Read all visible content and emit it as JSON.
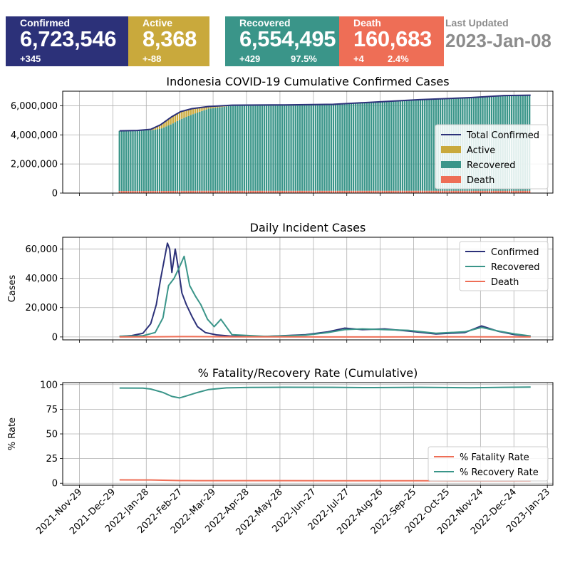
{
  "summary": {
    "confirmed": {
      "label": "Confirmed",
      "value": "6,723,546",
      "delta": "+345",
      "color": "#2c3179"
    },
    "active": {
      "label": "Active",
      "value": "8,368",
      "delta": "+-88",
      "color": "#c9a93c"
    },
    "recovered": {
      "label": "Recovered",
      "value": "6,554,495",
      "delta": "+429",
      "pct": "97.5%",
      "color": "#3a9589"
    },
    "death": {
      "label": "Death",
      "value": "160,683",
      "delta": "+4",
      "pct": "2.4%",
      "color": "#ee6e56"
    },
    "last_updated": {
      "label": "Last Updated",
      "value": "2023-Jan-08"
    }
  },
  "chart_data": [
    {
      "type": "area",
      "title": "Indonesia COVID-19 Cumulative Confirmed Cases",
      "ylabel": "",
      "ylim": [
        0,
        7000000
      ],
      "yticks": [
        0,
        2000000,
        4000000,
        6000000
      ],
      "ytick_labels": [
        "0",
        "2,000,000",
        "4,000,000",
        "6,000,000"
      ],
      "x": [
        "2022-01-04",
        "2022-01-20",
        "2022-02-01",
        "2022-02-10",
        "2022-02-20",
        "2022-02-28",
        "2022-03-10",
        "2022-03-25",
        "2022-04-15",
        "2022-06-01",
        "2022-07-15",
        "2022-08-20",
        "2022-09-30",
        "2022-11-15",
        "2022-12-15",
        "2023-01-08"
      ],
      "series": [
        {
          "name": "Total Confirmed",
          "color": "#2c3179",
          "values": [
            4280000,
            4300000,
            4380000,
            4700000,
            5250000,
            5600000,
            5800000,
            5950000,
            6040000,
            6060000,
            6100000,
            6250000,
            6420000,
            6560000,
            6700000,
            6723546
          ]
        },
        {
          "name": "Active",
          "color": "#c9a93c",
          "values": [
            6000,
            8000,
            60000,
            280000,
            500000,
            520000,
            400000,
            150000,
            40000,
            5000,
            14000,
            30000,
            20000,
            10000,
            12000,
            8368
          ]
        },
        {
          "name": "Recovered",
          "color": "#3a9589",
          "values": [
            4130000,
            4150000,
            4175000,
            4270000,
            4600000,
            4920000,
            5240000,
            5640000,
            5844000,
            5899000,
            5930000,
            6062000,
            6240000,
            6390000,
            6527000,
            6554495
          ]
        },
        {
          "name": "Death",
          "color": "#ee6e56",
          "values": [
            144000,
            144100,
            144600,
            145600,
            148700,
            152600,
            156200,
            159200,
            156000,
            156000,
            156000,
            158000,
            160000,
            160000,
            160700,
            160683
          ]
        }
      ],
      "legend": "right",
      "grid": true
    },
    {
      "type": "line",
      "title": "Daily Incident Cases",
      "ylabel": "Cases",
      "ylim": [
        -2000,
        68000
      ],
      "yticks": [
        0,
        20000,
        40000,
        60000
      ],
      "ytick_labels": [
        "0",
        "20,000",
        "40,000",
        "60,000"
      ],
      "legend": "top-right",
      "grid": true,
      "series": [
        {
          "name": "Confirmed",
          "color": "#2c3179",
          "x": [
            "2022-01-04",
            "2022-01-15",
            "2022-01-25",
            "2022-02-01",
            "2022-02-06",
            "2022-02-10",
            "2022-02-13",
            "2022-02-16",
            "2022-02-18",
            "2022-02-20",
            "2022-02-23",
            "2022-02-26",
            "2022-03-01",
            "2022-03-05",
            "2022-03-10",
            "2022-03-15",
            "2022-03-22",
            "2022-04-01",
            "2022-04-15",
            "2022-05-15",
            "2022-06-20",
            "2022-07-10",
            "2022-07-25",
            "2022-08-10",
            "2022-08-30",
            "2022-09-20",
            "2022-10-15",
            "2022-11-10",
            "2022-11-25",
            "2022-12-10",
            "2022-12-25",
            "2023-01-08"
          ],
          "values": [
            300,
            900,
            2500,
            9000,
            22000,
            40000,
            52000,
            64000,
            60000,
            44000,
            60000,
            46000,
            30000,
            22000,
            14000,
            7000,
            3000,
            1400,
            500,
            300,
            1500,
            3500,
            6000,
            5000,
            5500,
            4000,
            2000,
            3000,
            7500,
            3800,
            1500,
            500
          ]
        },
        {
          "name": "Recovered",
          "color": "#3a9589",
          "x": [
            "2022-01-04",
            "2022-01-15",
            "2022-01-25",
            "2022-02-05",
            "2022-02-12",
            "2022-02-17",
            "2022-02-22",
            "2022-02-27",
            "2022-03-03",
            "2022-03-08",
            "2022-03-13",
            "2022-03-18",
            "2022-03-24",
            "2022-03-30",
            "2022-04-05",
            "2022-04-15",
            "2022-05-15",
            "2022-06-20",
            "2022-07-10",
            "2022-07-25",
            "2022-08-10",
            "2022-08-30",
            "2022-09-20",
            "2022-10-15",
            "2022-11-10",
            "2022-11-25",
            "2022-12-10",
            "2022-12-25",
            "2023-01-08"
          ],
          "values": [
            500,
            600,
            800,
            3000,
            13000,
            35000,
            40000,
            48000,
            55000,
            35000,
            28000,
            22000,
            12000,
            7000,
            12000,
            1500,
            400,
            1200,
            3000,
            5000,
            5500,
            5000,
            4500,
            2500,
            3500,
            6500,
            4000,
            2000,
            600
          ]
        },
        {
          "name": "Death",
          "color": "#ee6e56",
          "x": [
            "2022-01-04",
            "2022-02-01",
            "2022-02-20",
            "2022-03-10",
            "2022-04-15",
            "2022-07-01",
            "2022-09-01",
            "2022-11-15",
            "2023-01-08"
          ],
          "values": [
            5,
            40,
            200,
            250,
            60,
            10,
            30,
            45,
            10
          ]
        }
      ]
    },
    {
      "type": "line",
      "title": "% Fatality/Recovery Rate (Cumulative)",
      "ylabel": "% Rate",
      "ylim": [
        -2,
        102
      ],
      "yticks": [
        0,
        25,
        50,
        75,
        100
      ],
      "ytick_labels": [
        "0",
        "25",
        "50",
        "75",
        "100"
      ],
      "legend": "bottom-right",
      "grid": true,
      "x": [
        "2022-01-04",
        "2022-01-25",
        "2022-02-01",
        "2022-02-12",
        "2022-02-20",
        "2022-02-27",
        "2022-03-05",
        "2022-03-15",
        "2022-03-25",
        "2022-04-10",
        "2022-05-01",
        "2022-06-01",
        "2022-07-15",
        "2022-08-20",
        "2022-09-30",
        "2022-11-15",
        "2022-12-15",
        "2023-01-08"
      ],
      "series": [
        {
          "name": "% Fatality Rate",
          "color": "#ee6e56",
          "values": [
            3.4,
            3.35,
            3.3,
            3.05,
            2.85,
            2.7,
            2.65,
            2.6,
            2.58,
            2.56,
            2.56,
            2.56,
            2.54,
            2.5,
            2.48,
            2.44,
            2.4,
            2.39
          ]
        },
        {
          "name": "% Recovery Rate",
          "color": "#3a9589",
          "values": [
            96.5,
            96.4,
            95.5,
            92,
            88,
            86.5,
            88.5,
            92,
            95,
            96.7,
            97.1,
            97.3,
            97.2,
            96.9,
            97.2,
            96.8,
            97.2,
            97.5
          ]
        }
      ]
    }
  ],
  "shared_xaxis": {
    "ticks": [
      "2021-11-29",
      "2021-12-29",
      "2022-01-28",
      "2022-02-27",
      "2022-03-29",
      "2022-04-28",
      "2022-05-28",
      "2022-06-27",
      "2022-07-27",
      "2022-08-26",
      "2022-09-25",
      "2022-10-25",
      "2022-11-24",
      "2022-12-24",
      "2023-01-23"
    ],
    "tick_labels": [
      "2021-Nov-29",
      "2021-Dec-29",
      "2022-Jan-28",
      "2022-Feb-27",
      "2022-Mar-29",
      "2022-Apr-28",
      "2022-May-28",
      "2022-Jun-27",
      "2022-Jul-27",
      "2022-Aug-26",
      "2022-Sep-25",
      "2022-Oct-25",
      "2022-Nov-24",
      "2022-Dec-24",
      "2023-Jan-23"
    ]
  }
}
